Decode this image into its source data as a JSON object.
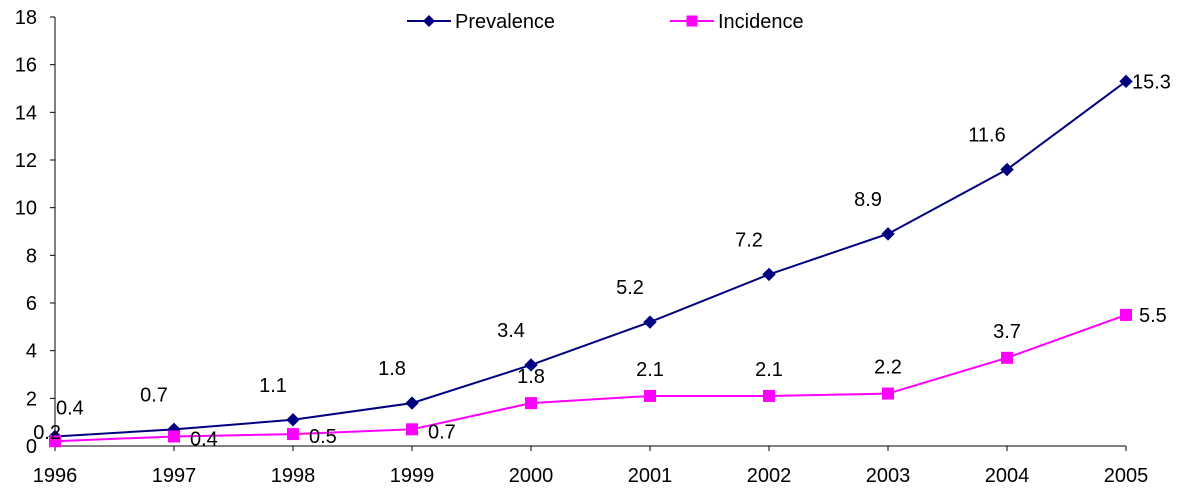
{
  "chart_data": {
    "type": "line",
    "title": "",
    "xlabel": "",
    "ylabel": "",
    "categories": [
      "1996",
      "1997",
      "1998",
      "1999",
      "2000",
      "2001",
      "2002",
      "2003",
      "2004",
      "2005"
    ],
    "ylim": [
      0,
      18
    ],
    "yticks": [
      "0",
      "2",
      "4",
      "6",
      "8",
      "10",
      "12",
      "14",
      "16",
      "18"
    ],
    "grid": false,
    "legend_position": "top-center",
    "series": [
      {
        "name": "Prevalence",
        "color": "#000080",
        "marker": "diamond",
        "values": [
          0.4,
          0.7,
          1.1,
          1.8,
          3.4,
          5.2,
          7.2,
          8.9,
          11.6,
          15.3
        ],
        "labels": [
          "0.4",
          "0.7",
          "1.1",
          "1.8",
          "3.4",
          "5.2",
          "7.2",
          "8.9",
          "11.6",
          "15.3"
        ]
      },
      {
        "name": "Incidence",
        "color": "#FF00FF",
        "marker": "square",
        "values": [
          0.2,
          0.4,
          0.5,
          0.7,
          1.8,
          2.1,
          2.1,
          2.2,
          3.7,
          5.5
        ],
        "labels": [
          "0.2",
          "0.4",
          "0.5",
          "0.7",
          "1.8",
          "2.1",
          "2.1",
          "2.2",
          "3.7",
          "5.5"
        ]
      }
    ]
  }
}
